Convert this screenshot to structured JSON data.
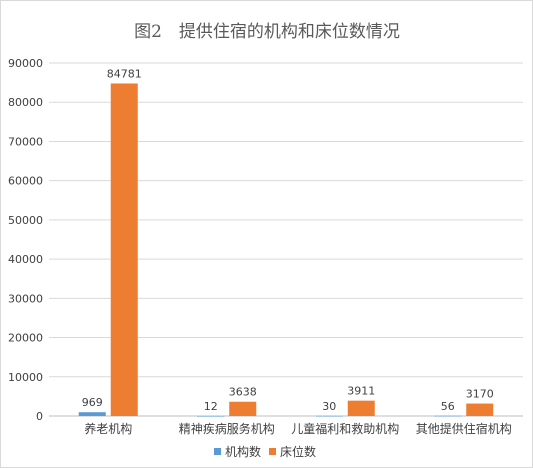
{
  "chart_data": {
    "type": "bar",
    "title": "图2　提供住宿的机构和床位数情况",
    "categories": [
      "养老机构",
      "精神疾病服务机构",
      "儿童福利和救助机构",
      "其他提供住宿机构"
    ],
    "series": [
      {
        "name": "机构数",
        "values": [
          969,
          12,
          30,
          56
        ],
        "color": "#5b9bd5"
      },
      {
        "name": "床位数",
        "values": [
          84781,
          3638,
          3911,
          3170
        ],
        "color": "#ed7d31"
      }
    ],
    "ylim": [
      0,
      90000
    ],
    "yticks": [
      "0",
      "10000",
      "20000",
      "30000",
      "40000",
      "50000",
      "60000",
      "70000",
      "80000",
      "90000"
    ],
    "grid": true,
    "legend": "bottom"
  }
}
